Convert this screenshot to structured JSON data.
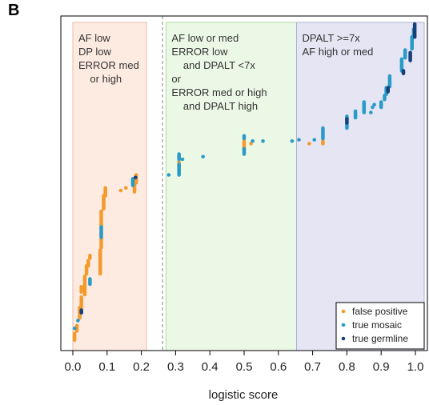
{
  "panel_label": "B",
  "colors": {
    "false_positive": "#f39a2b",
    "true_mosaic": "#2a9bc7",
    "true_germline": "#173f7a",
    "region_low": "#fdebe1",
    "region_low_border": "#f2b9a6",
    "region_mid": "#ecf8e6",
    "region_mid_border": "#a9dc9b",
    "region_high": "#e5e5f4",
    "region_high_border": "#aeb0d6",
    "threshold_line": "#9a9a9a"
  },
  "regions": [
    {
      "name": "low",
      "x_range": [
        0.0,
        0.215
      ],
      "lines": [
        "AF low",
        "DP low",
        "ERROR med",
        "    or high"
      ]
    },
    {
      "name": "mid",
      "x_range": [
        0.272,
        0.653
      ],
      "lines": [
        "AF low or med",
        "ERROR low",
        "    and DPALT <7x",
        "or",
        "ERROR med or high",
        "    and DPALT high"
      ]
    },
    {
      "name": "high",
      "x_range": [
        0.653,
        1.03
      ],
      "lines": [
        "DPALT >=7x",
        "AF high or med"
      ]
    }
  ],
  "threshold_x": 0.262,
  "chart_data": {
    "type": "scatter",
    "title": "",
    "xlabel": "logistic score",
    "ylabel": "",
    "xlim": [
      -0.035,
      1.035
    ],
    "ylim": [
      0,
      100
    ],
    "x_ticks": [
      0.0,
      0.1,
      0.2,
      0.3,
      0.4,
      0.5,
      0.6,
      0.7,
      0.8,
      0.9,
      1.0
    ],
    "x_tick_labels": [
      "0.0",
      "0.1",
      "0.2",
      "0.3",
      "0.4",
      "0.5",
      "0.6",
      "0.7",
      "0.8",
      "0.9",
      "1.0"
    ],
    "grid": false,
    "legend_position": "bottom-right",
    "series": [
      {
        "name": "false positive",
        "segments": [
          [
            0.005,
            2.5,
            0.005,
            5
          ],
          [
            0.012,
            6,
            0.012,
            8
          ],
          [
            0.02,
            11,
            0.02,
            15
          ],
          [
            0.025,
            15,
            0.025,
            19
          ],
          [
            0.025,
            21,
            0.025,
            23
          ],
          [
            0.035,
            20,
            0.035,
            27
          ],
          [
            0.04,
            28,
            0.04,
            31
          ],
          [
            0.045,
            31,
            0.045,
            33
          ],
          [
            0.05,
            34,
            0.05,
            35
          ],
          [
            0.08,
            28,
            0.08,
            37
          ],
          [
            0.083,
            38,
            0.083,
            44
          ],
          [
            0.083,
            45,
            0.083,
            52
          ],
          [
            0.09,
            53,
            0.09,
            58
          ],
          [
            0.095,
            58,
            0.095,
            61
          ],
          [
            0.18,
            59.5,
            0.18,
            63
          ],
          [
            0.185,
            63,
            0.185,
            66
          ],
          [
            0.31,
            69,
            0.31,
            71
          ],
          [
            0.5,
            76,
            0.5,
            79
          ],
          [
            0.73,
            78,
            0.73,
            79
          ]
        ],
        "points": [
          [
            0.14,
            60
          ],
          [
            0.155,
            61
          ],
          [
            0.31,
            73
          ],
          [
            0.52,
            78
          ],
          [
            0.69,
            78
          ]
        ]
      },
      {
        "name": "true mosaic",
        "segments": [
          [
            0.05,
            24,
            0.05,
            26
          ],
          [
            0.083,
            42,
            0.083,
            46
          ],
          [
            0.175,
            62,
            0.175,
            64.5
          ],
          [
            0.31,
            66,
            0.31,
            70
          ],
          [
            0.31,
            72,
            0.31,
            74
          ],
          [
            0.5,
            74,
            0.5,
            76
          ],
          [
            0.5,
            80,
            0.5,
            81
          ],
          [
            0.73,
            80,
            0.73,
            84
          ],
          [
            0.8,
            84,
            0.8,
            86
          ],
          [
            0.8,
            87.5,
            0.8,
            88.5
          ],
          [
            0.825,
            88,
            0.825,
            90.5
          ],
          [
            0.85,
            90,
            0.85,
            94
          ],
          [
            0.9,
            92,
            0.9,
            94
          ],
          [
            0.91,
            95,
            0.91,
            96.5
          ],
          [
            0.915,
            97,
            0.915,
            99.5
          ],
          [
            0.925,
            100,
            0.925,
            104
          ],
          [
            0.96,
            106,
            0.96,
            110.5
          ],
          [
            0.97,
            111,
            0.97,
            114
          ],
          [
            0.99,
            114.5,
            0.99,
            119
          ],
          [
            0.995,
            119,
            0.995,
            122
          ]
        ],
        "points": [
          [
            0.005,
            7
          ],
          [
            0.015,
            10
          ],
          [
            0.28,
            66
          ],
          [
            0.38,
            73
          ],
          [
            0.525,
            79
          ],
          [
            0.555,
            79
          ],
          [
            0.64,
            79
          ],
          [
            0.66,
            79.5
          ],
          [
            0.705,
            79.5
          ],
          [
            0.32,
            72
          ],
          [
            0.87,
            90
          ],
          [
            0.875,
            92
          ],
          [
            0.88,
            93
          ]
        ],
        "columns_note": ""
      },
      {
        "name": "true germline",
        "segments": [
          [
            0.025,
            13,
            0.025,
            14
          ],
          [
            0.8,
            86,
            0.8,
            87.5
          ],
          [
            0.92,
            98,
            0.92,
            99.5
          ],
          [
            0.965,
            105,
            0.965,
            106
          ],
          [
            0.985,
            110,
            0.985,
            113
          ],
          [
            0.998,
            119,
            0.998,
            124
          ]
        ],
        "points": [
          [
            0.183,
            65
          ]
        ]
      }
    ]
  }
}
